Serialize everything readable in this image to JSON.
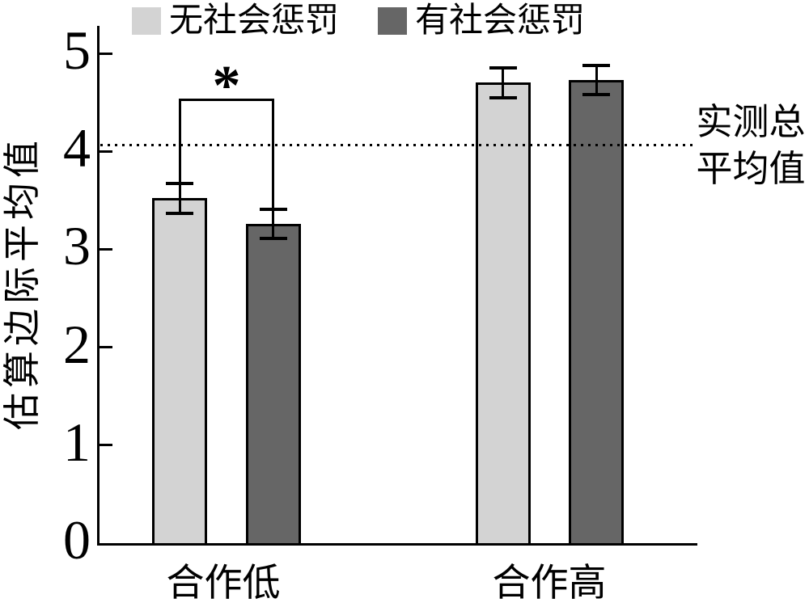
{
  "chart_data": {
    "type": "bar",
    "title": "",
    "categories": [
      "合作低",
      "合作高"
    ],
    "series": [
      {
        "name": "无社会惩罚",
        "color": "#d3d3d3",
        "values": [
          3.52,
          4.7
        ],
        "errors": [
          0.15,
          0.15
        ]
      },
      {
        "name": "有社会惩罚",
        "color": "#666666",
        "values": [
          3.26,
          4.73
        ],
        "errors": [
          0.15,
          0.15
        ]
      }
    ],
    "xlabel": "",
    "ylabel": "估算边际平均值",
    "ylim": [
      0,
      5
    ],
    "yticks": [
      0,
      1,
      2,
      3,
      4,
      5
    ],
    "grid": false,
    "legend_position": "top",
    "error_bars": true,
    "reference_line": {
      "value": 4.06,
      "style": "dotted",
      "label": "实测总平均值",
      "label_lines": [
        "实测总",
        "平均值"
      ]
    },
    "annotations": [
      {
        "type": "significance-bracket",
        "marker": "*",
        "category_index": 0,
        "between_series": [
          0,
          1
        ],
        "top_value": 4.53
      }
    ],
    "colors": {
      "axis": "#000000",
      "light_bar": "#d3d3d3",
      "dark_bar": "#666666"
    }
  }
}
